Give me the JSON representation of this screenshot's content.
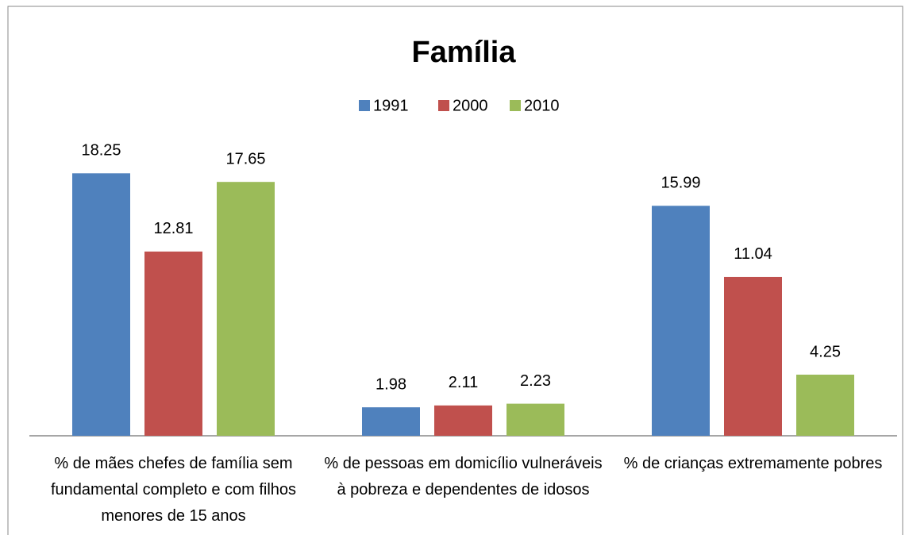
{
  "chart_data": {
    "type": "bar",
    "title": "Família",
    "categories": [
      "% de mães chefes de família sem fundamental completo e com filhos menores de 15 anos",
      "% de pessoas em domicílio vulneráveis à pobreza e dependentes de idosos",
      "% de crianças extremamente pobres"
    ],
    "series": [
      {
        "name": "1991",
        "color": "#4f81bd",
        "values": [
          18.25,
          1.98,
          15.99
        ]
      },
      {
        "name": "2000",
        "color": "#c0504d",
        "values": [
          12.81,
          2.11,
          11.04
        ]
      },
      {
        "name": "2010",
        "color": "#9bbb59",
        "values": [
          17.65,
          2.23,
          4.25
        ]
      }
    ],
    "legend": "top"
  }
}
